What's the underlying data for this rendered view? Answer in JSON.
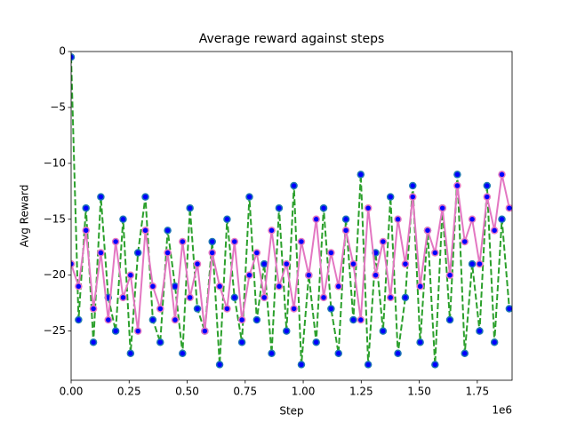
{
  "chart_data": {
    "type": "line",
    "title": "Average reward against steps",
    "xlabel": "Step",
    "ylabel": "Avg Reward",
    "x_offset_label": "1e6",
    "x": [
      0,
      32000,
      64000,
      96000,
      128000,
      160000,
      192000,
      224000,
      256000,
      288000,
      320000,
      352000,
      384000,
      416000,
      448000,
      480000,
      512000,
      544000,
      576000,
      608000,
      640000,
      672000,
      704000,
      736000,
      768000,
      800000,
      832000,
      864000,
      896000,
      928000,
      960000,
      992000,
      1024000,
      1056000,
      1088000,
      1120000,
      1152000,
      1184000,
      1216000,
      1248000,
      1280000,
      1312000,
      1344000,
      1376000,
      1408000,
      1440000,
      1472000,
      1504000,
      1536000,
      1568000,
      1600000,
      1632000,
      1664000,
      1696000,
      1728000,
      1760000,
      1792000,
      1824000,
      1856000,
      1888000
    ],
    "series": [
      {
        "color": "#2ca02c",
        "linestyle": "dashed",
        "marker_face": "#0000ff",
        "marker_edge": "#1f77b4",
        "values": [
          -0.5,
          -24,
          -14,
          -26,
          -13,
          -22,
          -25,
          -15,
          -27,
          -18,
          -13,
          -24,
          -26,
          -16,
          -21,
          -27,
          -14,
          -23,
          -25,
          -17,
          -28,
          -15,
          -22,
          -26,
          -13,
          -24,
          -19,
          -27,
          -14,
          -25,
          -12,
          -28,
          -20,
          -26,
          -14,
          -23,
          -27,
          -15,
          -24,
          -11,
          -28,
          -18,
          -25,
          -13,
          -27,
          -22,
          -12,
          -26,
          -16,
          -28,
          -14,
          -24,
          -11,
          -27,
          -19,
          -25,
          -12,
          -26,
          -15,
          -23
        ]
      },
      {
        "color": "#e377c2",
        "linestyle": "solid",
        "marker_face": "#0000ff",
        "marker_edge": "#e377c2",
        "values": [
          -19,
          -21,
          -16,
          -23,
          -18,
          -24,
          -17,
          -22,
          -20,
          -25,
          -16,
          -21,
          -23,
          -18,
          -24,
          -17,
          -22,
          -19,
          -25,
          -18,
          -21,
          -23,
          -17,
          -24,
          -20,
          -18,
          -22,
          -16,
          -21,
          -19,
          -23,
          -17,
          -20,
          -15,
          -22,
          -18,
          -21,
          -16,
          -19,
          -24,
          -14,
          -20,
          -17,
          -22,
          -15,
          -19,
          -13,
          -21,
          -16,
          -18,
          -14,
          -20,
          -12,
          -17,
          -15,
          -19,
          -13,
          -16,
          -11,
          -14
        ]
      }
    ],
    "xlim": [
      0,
      1900000
    ],
    "xticks": [
      {
        "value": 0,
        "label": "0.00"
      },
      {
        "value": 250000,
        "label": "0.25"
      },
      {
        "value": 500000,
        "label": "0.50"
      },
      {
        "value": 750000,
        "label": "0.75"
      },
      {
        "value": 1000000,
        "label": "1.00"
      },
      {
        "value": 1250000,
        "label": "1.25"
      },
      {
        "value": 1500000,
        "label": "1.50"
      },
      {
        "value": 1750000,
        "label": "1.75"
      }
    ],
    "ylim": [
      -29.4,
      0
    ],
    "yticks": [
      {
        "value": -25,
        "label": "−25"
      },
      {
        "value": -20,
        "label": "−20"
      },
      {
        "value": -15,
        "label": "−15"
      },
      {
        "value": -10,
        "label": "−10"
      },
      {
        "value": -5,
        "label": "−5"
      },
      0
    ]
  }
}
